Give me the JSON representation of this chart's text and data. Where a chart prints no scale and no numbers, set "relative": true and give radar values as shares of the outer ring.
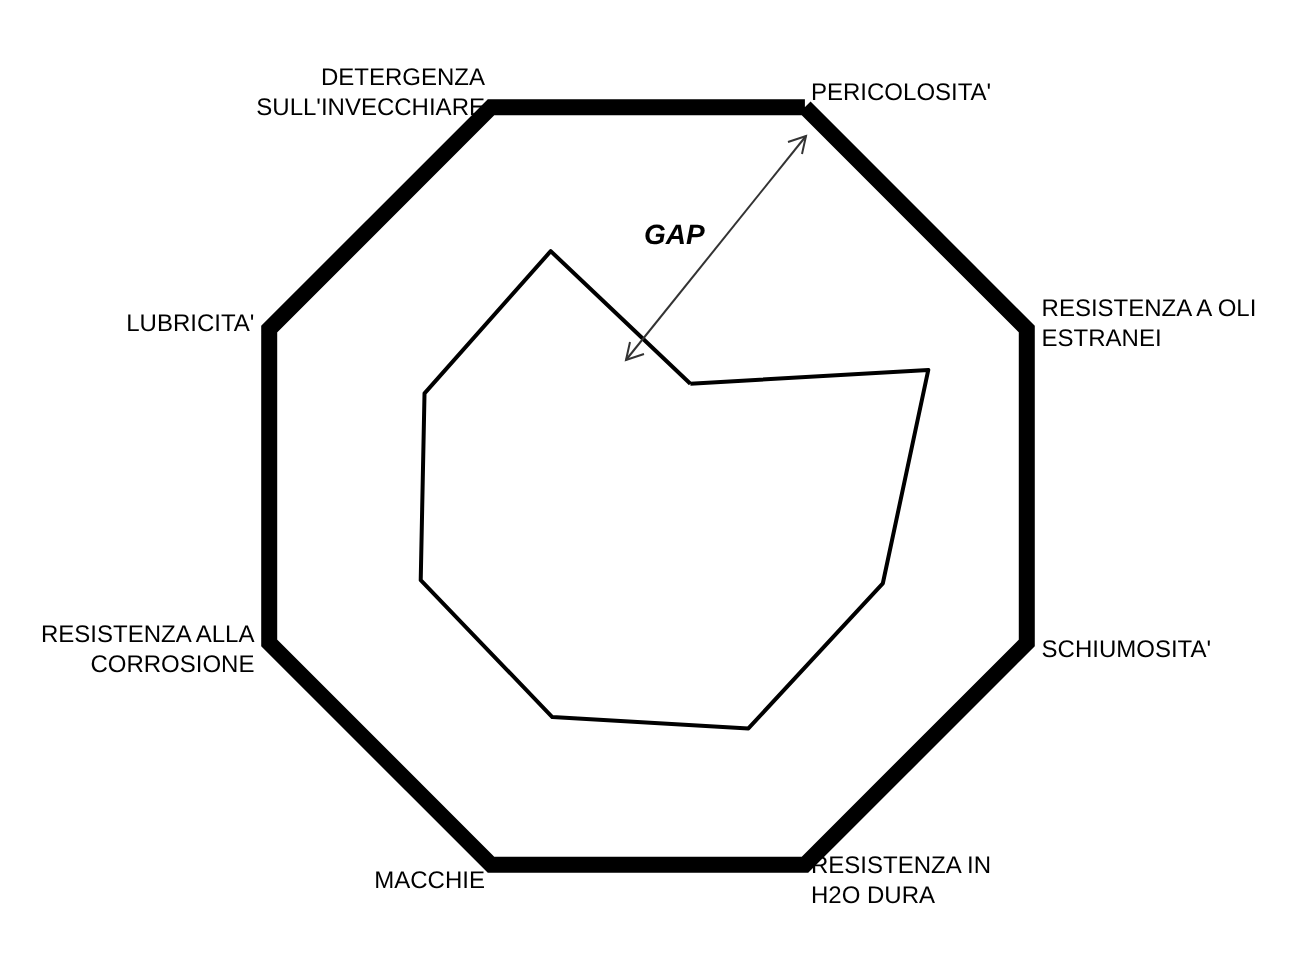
{
  "chart_data": {
    "type": "radar",
    "relative": true,
    "categories": [
      "PERICOLOSITA'",
      "RESISTENZA A OLI ESTRANEI",
      "SCHIUMOSITA'",
      "RESISTENZA IN H2O DURA",
      "MACCHIE",
      "RESISTENZA ALLA CORROSIONE",
      "LUBRICITA'",
      "DETERGENZA SULL'INVECCHIARE"
    ],
    "series": [
      {
        "color": "#000000",
        "values": [
          0.27,
          0.74,
          0.62,
          0.64,
          0.61,
          0.6,
          0.59,
          0.62
        ]
      }
    ],
    "annotations": [
      "GAP"
    ],
    "marker": "none"
  }
}
